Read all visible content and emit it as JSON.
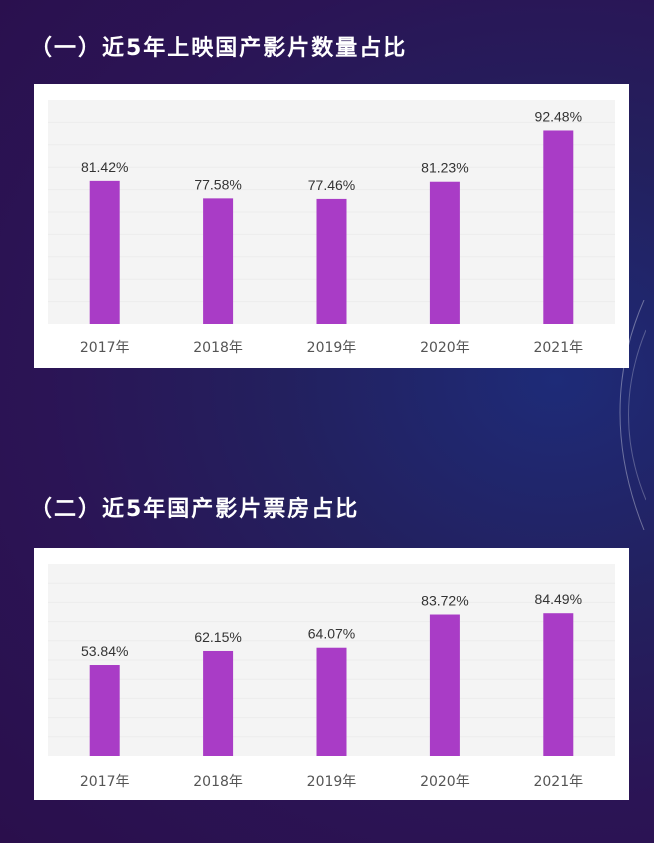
{
  "charts": [
    {
      "title": "（一）近5年上映国产影片数量占比"
    },
    {
      "title": "（二）近5年国产影片票房占比"
    }
  ],
  "chart_data": [
    {
      "type": "bar",
      "title": "（一）近5年上映国产影片数量占比",
      "categories": [
        "2017年",
        "2018年",
        "2019年",
        "2020年",
        "2021年"
      ],
      "values": [
        81.42,
        77.58,
        77.46,
        81.23,
        92.48
      ],
      "labels": [
        "81.42%",
        "77.58%",
        "77.46%",
        "81.23%",
        "92.48%"
      ],
      "ylim": [
        50,
        95
      ],
      "xlabel": "",
      "ylabel": "",
      "color": "#a93cc6"
    },
    {
      "type": "bar",
      "title": "（二）近5年国产影片票房占比",
      "categories": [
        "2017年",
        "2018年",
        "2019年",
        "2020年",
        "2021年"
      ],
      "values": [
        53.84,
        62.15,
        64.07,
        83.72,
        84.49
      ],
      "labels": [
        "53.84%",
        "62.15%",
        "64.07%",
        "83.72%",
        "84.49%"
      ],
      "ylim": [
        0,
        100
      ],
      "xlabel": "",
      "ylabel": "",
      "color": "#a93cc6"
    }
  ]
}
